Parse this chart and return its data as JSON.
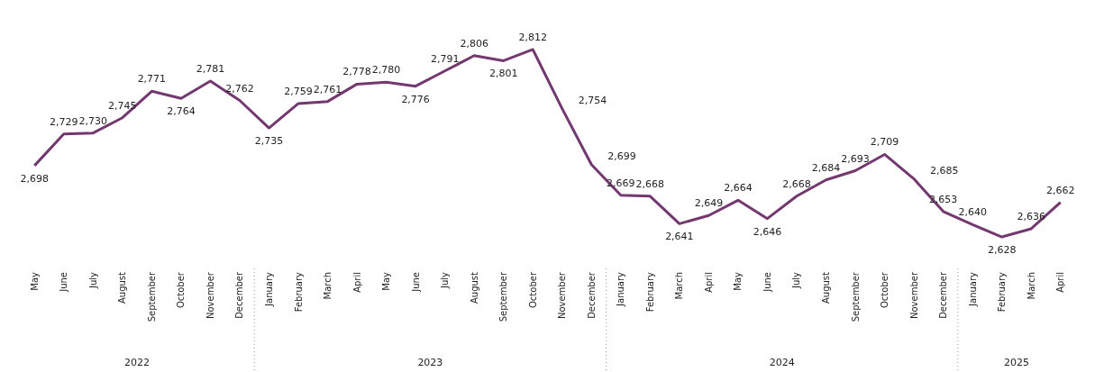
{
  "chart_data": {
    "type": "line",
    "x": [
      "2022-05",
      "2022-06",
      "2022-07",
      "2022-08",
      "2022-09",
      "2022-10",
      "2022-11",
      "2022-12",
      "2023-01",
      "2023-02",
      "2023-03",
      "2023-04",
      "2023-05",
      "2023-06",
      "2023-07",
      "2023-08",
      "2023-09",
      "2023-10",
      "2023-11",
      "2023-12",
      "2024-01",
      "2024-02",
      "2024-03",
      "2024-04",
      "2024-05",
      "2024-06",
      "2024-07",
      "2024-08",
      "2024-09",
      "2024-10",
      "2024-11",
      "2024-12",
      "2025-01",
      "2025-02",
      "2025-03",
      "2025-04"
    ],
    "xticks": [
      {
        "value": "2022-05",
        "label": "May"
      },
      {
        "value": "2022-06",
        "label": "June"
      },
      {
        "value": "2022-07",
        "label": "July"
      },
      {
        "value": "2022-08",
        "label": "August"
      },
      {
        "value": "2022-09",
        "label": "September"
      },
      {
        "value": "2022-10",
        "label": "October"
      },
      {
        "value": "2022-11",
        "label": "November"
      },
      {
        "value": "2022-12",
        "label": "December"
      },
      {
        "value": "2023-01",
        "label": "January"
      },
      {
        "value": "2023-02",
        "label": "February"
      },
      {
        "value": "2023-03",
        "label": "March"
      },
      {
        "value": "2023-04",
        "label": "April"
      },
      {
        "value": "2023-05",
        "label": "May"
      },
      {
        "value": "2023-06",
        "label": "June"
      },
      {
        "value": "2023-07",
        "label": "July"
      },
      {
        "value": "2023-08",
        "label": "August"
      },
      {
        "value": "2023-09",
        "label": "September"
      },
      {
        "value": "2023-10",
        "label": "October"
      },
      {
        "value": "2023-11",
        "label": "November"
      },
      {
        "value": "2023-12",
        "label": "December"
      },
      {
        "value": "2024-01",
        "label": "January"
      },
      {
        "value": "2024-02",
        "label": "February"
      },
      {
        "value": "2024-03",
        "label": "March"
      },
      {
        "value": "2024-04",
        "label": "April"
      },
      {
        "value": "2024-05",
        "label": "May"
      },
      {
        "value": "2024-06",
        "label": "June"
      },
      {
        "value": "2024-07",
        "label": "July"
      },
      {
        "value": "2024-08",
        "label": "August"
      },
      {
        "value": "2024-09",
        "label": "September"
      },
      {
        "value": "2024-10",
        "label": "October"
      },
      {
        "value": "2024-11",
        "label": "November"
      },
      {
        "value": "2024-12",
        "label": "December"
      },
      {
        "value": "2025-01",
        "label": "January"
      },
      {
        "value": "2025-02",
        "label": "February"
      },
      {
        "value": "2025-03",
        "label": "March"
      },
      {
        "value": "2025-04",
        "label": "April"
      }
    ],
    "values": [
      2698,
      2729,
      2730,
      2745,
      2771,
      2764,
      2781,
      2762,
      2735,
      2759,
      2761,
      2778,
      2780,
      2776,
      2791,
      2806,
      2801,
      2812,
      2754,
      2699,
      2669,
      2668,
      2641,
      2649,
      2664,
      2646,
      2668,
      2684,
      2693,
      2709,
      2685,
      2653,
      2640,
      2628,
      2636,
      2662
    ],
    "xlim": [
      "2022-05",
      "2025-04"
    ],
    "value_labels": [
      "2,698",
      "2,729",
      "2,730",
      "2,745",
      "2,771",
      "2,764",
      "2,781",
      "2,762",
      "2,735",
      "2,759",
      "2,761",
      "2,778",
      "2,780",
      "2,776",
      "2,791",
      "2,806",
      "2,801",
      "2,812",
      "2,754",
      "2,699",
      "2,669",
      "2,668",
      "2,641",
      "2,649",
      "2,664",
      "2,646",
      "2,668",
      "2,684",
      "2,693",
      "2,709",
      "2,685",
      "2,653",
      "2,640",
      "2,628",
      "2,636",
      "2,662"
    ],
    "color": "#73386f",
    "tick_labels": "x",
    "marker": "none",
    "line_style": "solid",
    "annotations": [
      "2022",
      "2023",
      "2024",
      "2025"
    ]
  }
}
